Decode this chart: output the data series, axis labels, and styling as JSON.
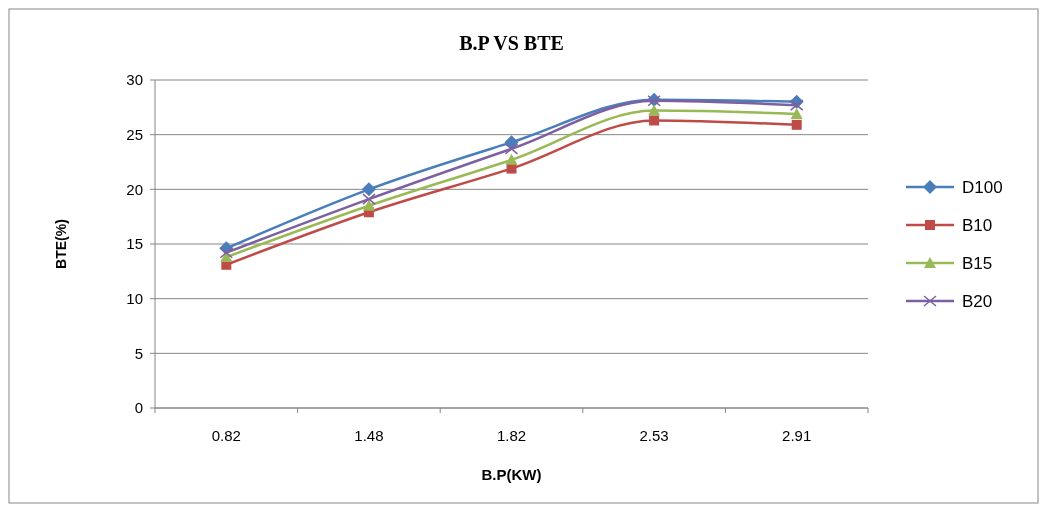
{
  "chart_data": {
    "type": "line",
    "title": "B.P VS BTE",
    "xlabel": "B.P(KW)",
    "ylabel": "BTE(%)",
    "categories": [
      "0.82",
      "1.48",
      "1.82",
      "2.53",
      "2.91"
    ],
    "series": [
      {
        "name": "D100",
        "color": "#4a7ebb",
        "marker": "diamond",
        "values": [
          14.6,
          20.0,
          24.3,
          28.2,
          28.0
        ]
      },
      {
        "name": "B10",
        "color": "#be4b48",
        "marker": "square",
        "values": [
          13.1,
          17.9,
          21.9,
          26.3,
          25.9
        ]
      },
      {
        "name": "B15",
        "color": "#98b954",
        "marker": "triangle",
        "values": [
          13.8,
          18.5,
          22.7,
          27.2,
          26.9
        ]
      },
      {
        "name": "B20",
        "color": "#7d60a0",
        "marker": "cross",
        "values": [
          14.2,
          19.1,
          23.7,
          28.1,
          27.7
        ]
      }
    ],
    "ylim": [
      0,
      30
    ],
    "yticks": [
      0,
      5,
      10,
      15,
      20,
      25,
      30
    ],
    "grid": "y",
    "legend": "right"
  }
}
